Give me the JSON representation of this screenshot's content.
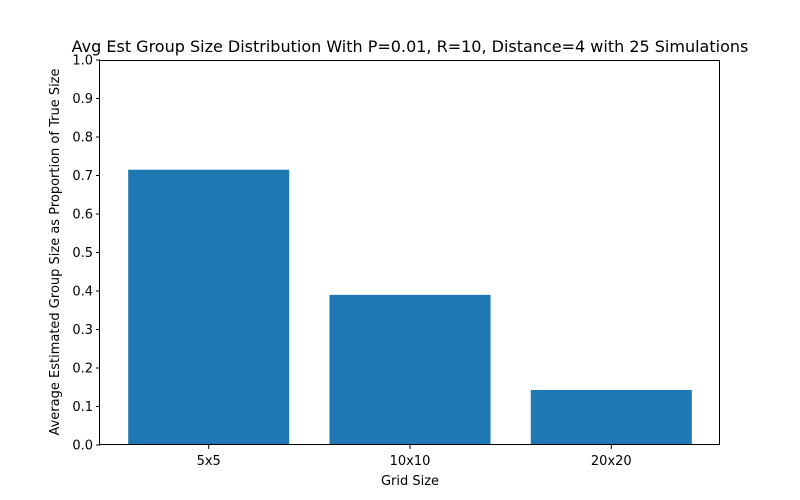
{
  "chart_data": {
    "type": "bar",
    "title": "Avg Est Group Size Distribution With P=0.01, R=10, Distance=4 with 25 Simulations",
    "xlabel": "Grid Size",
    "ylabel": "Average Estimated Group Size as Proportion of True Size",
    "categories": [
      "5x5",
      "10x10",
      "20x20"
    ],
    "values": [
      0.715,
      0.39,
      0.143
    ],
    "ylim": [
      0,
      1
    ],
    "yticks": [
      0.0,
      0.1,
      0.2,
      0.3,
      0.4,
      0.5,
      0.6,
      0.7,
      0.8,
      0.9,
      1.0
    ],
    "ytick_labels": [
      "0.0",
      "0.1",
      "0.2",
      "0.3",
      "0.4",
      "0.5",
      "0.6",
      "0.7",
      "0.8",
      "0.9",
      "1.0"
    ],
    "bar_color": "#1f77b4",
    "grid": false,
    "legend": "none"
  }
}
